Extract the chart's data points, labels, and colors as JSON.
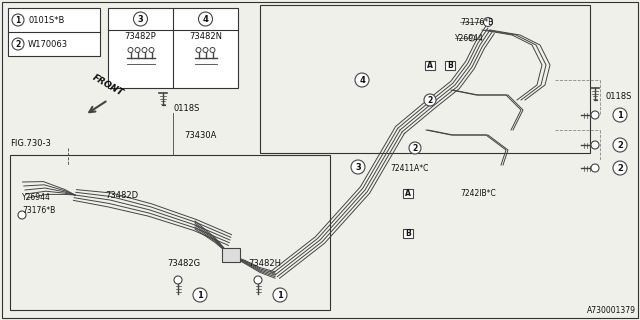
{
  "bg_color": "#f0f0eb",
  "line_color": "#444444",
  "border_color": "#333333",
  "text_color": "#111111",
  "part_number": "A730001379",
  "labels": {
    "item1": "0101S*B",
    "item2": "W170063",
    "item3": "73482P",
    "item4": "73482N",
    "part_0118S_center": "0118S",
    "part_0118S_right1": "0118S",
    "part_73430A": "73430A",
    "part_73176B_top": "73176*B",
    "part_Y26944_top": "Y26944",
    "part_73176B_left": "73176*B",
    "part_Y26944_left": "Y26944",
    "part_73482D": "73482D",
    "part_73482G": "73482G",
    "part_73482H": "73482H",
    "part_72411A": "72411A*C",
    "part_72421B": "7242lB*C",
    "fig_ref": "FIG.730-3",
    "front_label": "FRONT"
  },
  "dashed_color": "#888888",
  "box_fill": "#ffffff",
  "pipe_offsets": [
    -8,
    -4,
    0,
    4,
    8
  ]
}
